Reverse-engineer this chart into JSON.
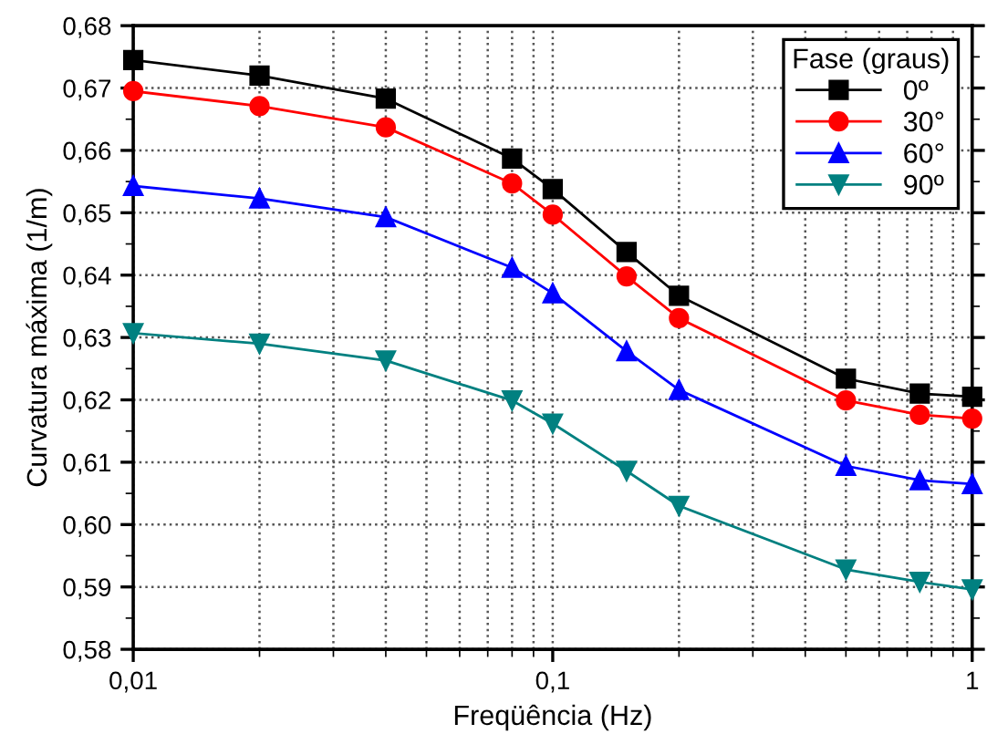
{
  "chart_data": {
    "type": "line",
    "xlabel": "Freqüência (Hz)",
    "ylabel": "Curvatura máxima (1/m)",
    "legend_title": "Fase (graus)",
    "legend": "top right",
    "grid": true,
    "log": "x",
    "x": [
      0.01,
      0.02,
      0.04,
      0.08,
      0.1,
      0.15,
      0.2,
      0.5,
      0.75,
      1
    ],
    "xlim": [
      0.01,
      1
    ],
    "xticks": [
      {
        "value": 0.01,
        "label": "0,01"
      },
      {
        "value": 0.1,
        "label": "0,1"
      },
      1
    ],
    "ylim": [
      0.58,
      0.68
    ],
    "yticks": [
      {
        "value": 0.58,
        "label": "0,58"
      },
      {
        "value": 0.59,
        "label": "0,59"
      },
      {
        "value": 0.6,
        "label": "0,60"
      },
      {
        "value": 0.61,
        "label": "0,61"
      },
      {
        "value": 0.62,
        "label": "0,62"
      },
      {
        "value": 0.63,
        "label": "0,63"
      },
      {
        "value": 0.64,
        "label": "0,64"
      },
      {
        "value": 0.65,
        "label": "0,65"
      },
      {
        "value": 0.66,
        "label": "0,66"
      },
      {
        "value": 0.67,
        "label": "0,67"
      },
      {
        "value": 0.68,
        "label": "0,68"
      }
    ],
    "line_style": "solid",
    "series": [
      {
        "name": "0º",
        "color": "#000000",
        "marker": "square",
        "values": [
          0.6745,
          0.672,
          0.6683,
          0.6587,
          0.6538,
          0.6437,
          0.6367,
          0.6234,
          0.621,
          0.6205
        ]
      },
      {
        "name": "30°",
        "color": "#ff0000",
        "marker": "circle",
        "values": [
          0.6695,
          0.6671,
          0.6637,
          0.6547,
          0.6497,
          0.6398,
          0.6331,
          0.6199,
          0.6176,
          0.617
        ]
      },
      {
        "name": "60°",
        "color": "#0000ff",
        "marker": "triangle",
        "values": [
          0.6543,
          0.6523,
          0.6493,
          0.6412,
          0.6371,
          0.6278,
          0.6216,
          0.6094,
          0.6071,
          0.6065
        ]
      },
      {
        "name": "90º",
        "color": "#008080",
        "marker": "triangle_down",
        "values": [
          0.6307,
          0.629,
          0.6263,
          0.6199,
          0.6162,
          0.6086,
          0.603,
          0.5928,
          0.5908,
          0.5896
        ]
      }
    ]
  }
}
